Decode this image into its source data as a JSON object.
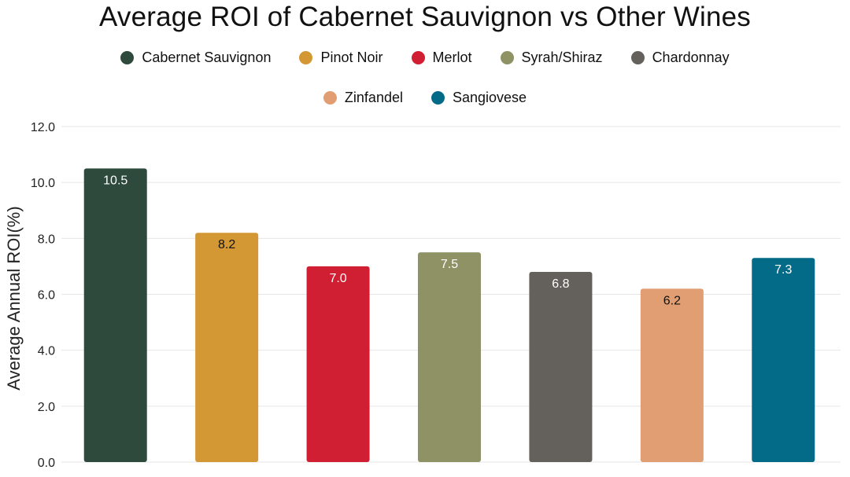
{
  "chart_data": {
    "type": "bar",
    "title": "Average ROI of Cabernet Sauvignon vs Other Wines",
    "ylabel": "Average Annual ROI(%)",
    "xlabel": "",
    "categories": [
      "Cabernet Sauvignon",
      "Pinot Noir",
      "Merlot",
      "Syrah/Shiraz",
      "Chardonnay",
      "Zinfandel",
      "Sangiovese"
    ],
    "values": [
      10.5,
      8.2,
      7.0,
      7.5,
      6.8,
      6.2,
      7.3
    ],
    "value_labels": [
      "10.5",
      "8.2",
      "7.0",
      "7.5",
      "6.8",
      "6.2",
      "7.3"
    ],
    "colors": [
      "#2e4a3d",
      "#d39734",
      "#d01e33",
      "#8e9265",
      "#64615c",
      "#e19e72",
      "#036b87"
    ],
    "label_colors": [
      "#ffffff",
      "#111111",
      "#ffffff",
      "#ffffff",
      "#ffffff",
      "#111111",
      "#ffffff"
    ],
    "ylim": [
      0,
      12
    ],
    "yticks": [
      "0.0",
      "2.0",
      "4.0",
      "6.0",
      "8.0",
      "10.0",
      "12.0"
    ],
    "grid": true,
    "legend_position": "top-center"
  }
}
